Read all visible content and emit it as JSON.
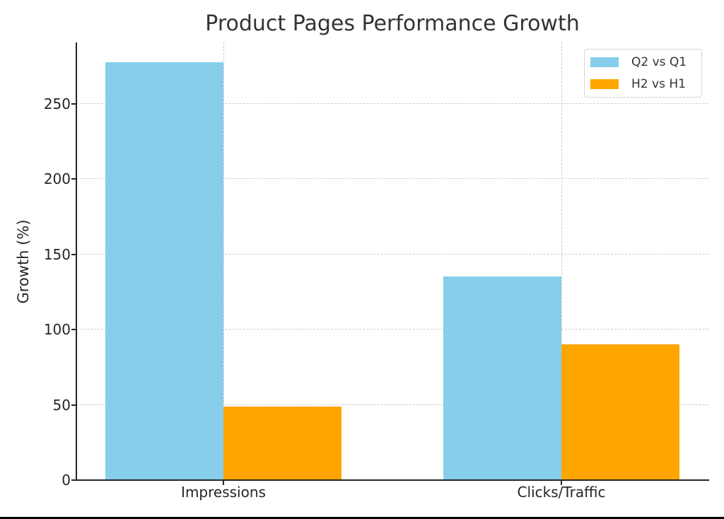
{
  "chart_data": {
    "type": "bar",
    "title": "Product Pages Performance Growth",
    "xlabel": "",
    "ylabel": "Growth (%)",
    "categories": [
      "Impressions",
      "Clicks/Traffic"
    ],
    "series": [
      {
        "name": "Q2 vs Q1",
        "color": "#87ceeb",
        "values": [
          277.2,
          135.0
        ]
      },
      {
        "name": "H2 vs H1",
        "color": "#ffa500",
        "values": [
          48.6,
          89.9
        ]
      }
    ],
    "ylim": [
      0,
      290
    ],
    "yticks": [
      0,
      50,
      100,
      150,
      200,
      250
    ],
    "grid": true,
    "legend_position": "upper right"
  },
  "labels": {
    "title": "Product Pages Performance Growth",
    "ylabel": "Growth (%)",
    "ytick_labels": [
      "0",
      "50",
      "100",
      "150",
      "200",
      "250"
    ],
    "xtick_labels": [
      "Impressions",
      "Clicks/Traffic"
    ],
    "legend": [
      "Q2 vs Q1",
      "H2 vs H1"
    ]
  }
}
